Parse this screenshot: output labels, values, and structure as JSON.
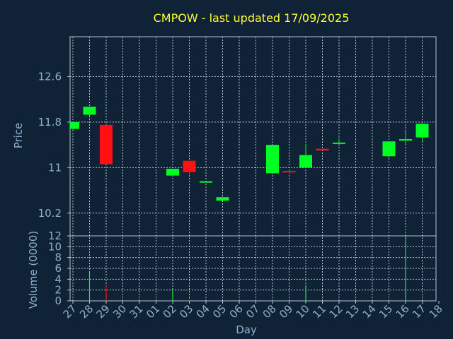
{
  "chart_data": [
    {
      "type": "candlestick",
      "title": "CMPOW - last updated 17/09/2025",
      "ylabel": "Price",
      "ylim": [
        9.8,
        13.3
      ],
      "yticks": [
        10.2,
        11,
        11.8,
        12.6
      ],
      "ytick_labels": [
        "10.2",
        "11",
        "11.8",
        "12.6"
      ],
      "grid": true,
      "colors": {
        "up": "#00ff22",
        "down": "#ff1111",
        "grid": "#b8c4d0",
        "frame": "#b8c4d0"
      },
      "x": [
        "27",
        "28",
        "29",
        "30",
        "31",
        "01",
        "02",
        "03",
        "04",
        "05",
        "06",
        "07",
        "08",
        "09",
        "10",
        "11",
        "12",
        "13",
        "14",
        "15",
        "16",
        "17",
        "18"
      ],
      "candles": [
        {
          "day": "27",
          "open": 11.68,
          "high": 11.8,
          "low": 11.66,
          "close": 11.8
        },
        {
          "day": "28",
          "open": 11.93,
          "high": 12.07,
          "low": 11.88,
          "close": 12.07
        },
        {
          "day": "29",
          "open": 11.75,
          "high": 11.75,
          "low": 11.06,
          "close": 11.06
        },
        {
          "day": "02",
          "open": 10.86,
          "high": 10.98,
          "low": 10.86,
          "close": 10.98
        },
        {
          "day": "03",
          "open": 11.12,
          "high": 11.12,
          "low": 10.9,
          "close": 10.92
        },
        {
          "day": "04",
          "open": 10.75,
          "high": 10.76,
          "low": 10.74,
          "close": 10.76
        },
        {
          "day": "05",
          "open": 10.42,
          "high": 10.48,
          "low": 10.42,
          "close": 10.48
        },
        {
          "day": "08",
          "open": 10.9,
          "high": 11.4,
          "low": 10.9,
          "close": 11.4
        },
        {
          "day": "09",
          "open": 10.94,
          "high": 10.95,
          "low": 10.9,
          "close": 10.92
        },
        {
          "day": "10",
          "open": 11.0,
          "high": 11.42,
          "low": 11.0,
          "close": 11.22
        },
        {
          "day": "11",
          "open": 11.33,
          "high": 11.33,
          "low": 11.3,
          "close": 11.3
        },
        {
          "day": "12",
          "open": 11.44,
          "high": 11.52,
          "low": 11.38,
          "close": 11.44
        },
        {
          "day": "15",
          "open": 11.2,
          "high": 11.46,
          "low": 11.17,
          "close": 11.46
        },
        {
          "day": "16",
          "open": 11.48,
          "high": 11.64,
          "low": 11.4,
          "close": 11.5
        },
        {
          "day": "17",
          "open": 11.53,
          "high": 11.77,
          "low": 11.46,
          "close": 11.77
        }
      ]
    },
    {
      "type": "bar",
      "ylabel": "Volume (0000)",
      "xlabel": "Day",
      "ylim": [
        0,
        12
      ],
      "yticks": [
        0,
        2,
        4,
        6,
        8,
        10,
        12
      ],
      "ytick_labels": [
        "0",
        "2",
        "4",
        "6",
        "8",
        "10",
        "12"
      ],
      "grid": true,
      "x": [
        "27",
        "28",
        "29",
        "30",
        "31",
        "01",
        "02",
        "03",
        "04",
        "05",
        "06",
        "07",
        "08",
        "09",
        "10",
        "11",
        "12",
        "13",
        "14",
        "15",
        "16",
        "17",
        "18"
      ],
      "bars": [
        {
          "day": "28",
          "value": 5.3,
          "color": "#00ff22"
        },
        {
          "day": "29",
          "value": 2.8,
          "color": "#ff1111"
        },
        {
          "day": "02",
          "value": 2.1,
          "color": "#00ff22"
        },
        {
          "day": "03",
          "value": 0.5,
          "color": "#ff1111"
        },
        {
          "day": "08",
          "value": 0.2,
          "color": "#00ff22"
        },
        {
          "day": "10",
          "value": 2.9,
          "color": "#00ff22"
        },
        {
          "day": "16",
          "value": 12.0,
          "color": "#00ff22"
        }
      ]
    }
  ]
}
